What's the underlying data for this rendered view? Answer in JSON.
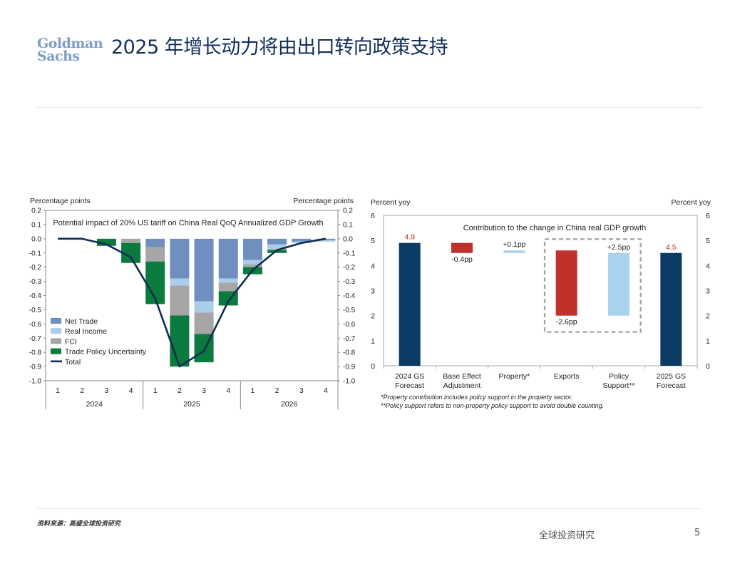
{
  "header": {
    "logo_line1": "Goldman",
    "logo_line2": "Sachs",
    "title": "2025 年增长动力将由出口转向政策支持"
  },
  "colors": {
    "net_trade": "#6f8fbf",
    "real_income": "#a9cdea",
    "fci": "#a6a6a6",
    "trade_policy_uncertainty": "#0a7a3e",
    "total": "#0f2d4f",
    "gs_forecast": "#0c3b66",
    "negative_bar": "#c0312b",
    "positive_bar": "#a9d2ef",
    "value_label_red": "#c0312b"
  },
  "chart_data": [
    {
      "type": "bar",
      "stacked": true,
      "title": "Potential impact of 20% US tariff on China Real QoQ Annualized GDP Growth",
      "ylabel_left": "Percentage points",
      "ylabel_right": "Percentage points",
      "ylim": [
        -1.0,
        0.2
      ],
      "yticks": [
        "0.2",
        "0.1",
        "0.0",
        "-0.1",
        "-0.2",
        "-0.3",
        "-0.4",
        "-0.5",
        "-0.6",
        "-0.7",
        "-0.8",
        "-0.9",
        "-1.0"
      ],
      "categories": [
        "1",
        "2",
        "3",
        "4",
        "1",
        "2",
        "3",
        "4",
        "1",
        "2",
        "3",
        "4"
      ],
      "year_groups": [
        {
          "label": "2024",
          "count": 4
        },
        {
          "label": "2025",
          "count": 4
        },
        {
          "label": "2026",
          "count": 4
        }
      ],
      "series": [
        {
          "name": "Net Trade",
          "color_key": "net_trade",
          "values": [
            0,
            0,
            0,
            0,
            -0.06,
            -0.28,
            -0.44,
            -0.28,
            -0.15,
            -0.04,
            -0.02,
            -0.01
          ]
        },
        {
          "name": "Real Income",
          "color_key": "real_income",
          "values": [
            0,
            0,
            0,
            0,
            0,
            -0.05,
            -0.08,
            -0.03,
            -0.03,
            -0.03,
            -0.01,
            -0.01
          ]
        },
        {
          "name": "FCI",
          "color_key": "fci",
          "values": [
            0,
            0,
            0,
            -0.03,
            -0.1,
            -0.21,
            -0.15,
            -0.06,
            -0.02,
            -0.01,
            0,
            0
          ]
        },
        {
          "name": "Trade Policy Uncertainty",
          "color_key": "trade_policy_uncertainty",
          "values": [
            0,
            0,
            -0.05,
            -0.14,
            -0.3,
            -0.36,
            -0.2,
            -0.1,
            -0.05,
            -0.02,
            0,
            0
          ]
        }
      ],
      "line": {
        "name": "Total",
        "color_key": "total",
        "values": [
          0,
          0,
          -0.04,
          -0.13,
          -0.42,
          -0.9,
          -0.79,
          -0.44,
          -0.22,
          -0.08,
          -0.03,
          0
        ]
      },
      "legend": [
        "Net Trade",
        "Real Income",
        "FCI",
        "Trade Policy Uncertainty",
        "Total"
      ],
      "legend_position": "bottom-left",
      "grid": false
    },
    {
      "type": "bar",
      "waterfall": true,
      "title": "Contribution to the change in China real GDP growth",
      "ylabel_left": "Percent yoy",
      "ylabel_right": "Percent yoy",
      "ylim": [
        0,
        6
      ],
      "yticks": [
        "6",
        "5",
        "4",
        "3",
        "2",
        "1",
        "0"
      ],
      "categories": [
        [
          "2024 GS",
          "Forecast"
        ],
        [
          "Base Effect",
          "Adjustment"
        ],
        [
          "Property*"
        ],
        [
          "Exports"
        ],
        [
          "Policy",
          "Support**"
        ],
        [
          "2025 GS",
          "Forecast"
        ]
      ],
      "bars": [
        {
          "from": 0,
          "to": 4.9,
          "color_key": "gs_forecast",
          "label": "4.9",
          "label_color_key": "value_label_red",
          "label_pos": "above"
        },
        {
          "from": 4.9,
          "to": 4.5,
          "color_key": "negative_bar",
          "label": "-0.4pp",
          "label_pos": "below"
        },
        {
          "from": 4.5,
          "to": 4.6,
          "color_key": "positive_bar",
          "label": "+0.1pp",
          "label_pos": "above"
        },
        {
          "from": 4.6,
          "to": 2.0,
          "color_key": "negative_bar",
          "label": "-2.6pp",
          "label_pos": "below"
        },
        {
          "from": 2.0,
          "to": 4.5,
          "color_key": "positive_bar",
          "label": "+2.5pp",
          "label_pos": "above"
        },
        {
          "from": 0,
          "to": 4.5,
          "color_key": "gs_forecast",
          "label": "4.5",
          "label_color_key": "value_label_red",
          "label_pos": "above"
        }
      ],
      "highlight_box_categories": [
        3,
        4
      ],
      "footnotes": [
        "*Property contribution includes policy support in the property sector.",
        "**Policy support refers to non-property policy support to avoid double counting."
      ],
      "grid": false
    }
  ],
  "footer": {
    "source": "资料来源：高盛全球投资研究",
    "brand": "全球投资研究",
    "page_number": "5"
  }
}
